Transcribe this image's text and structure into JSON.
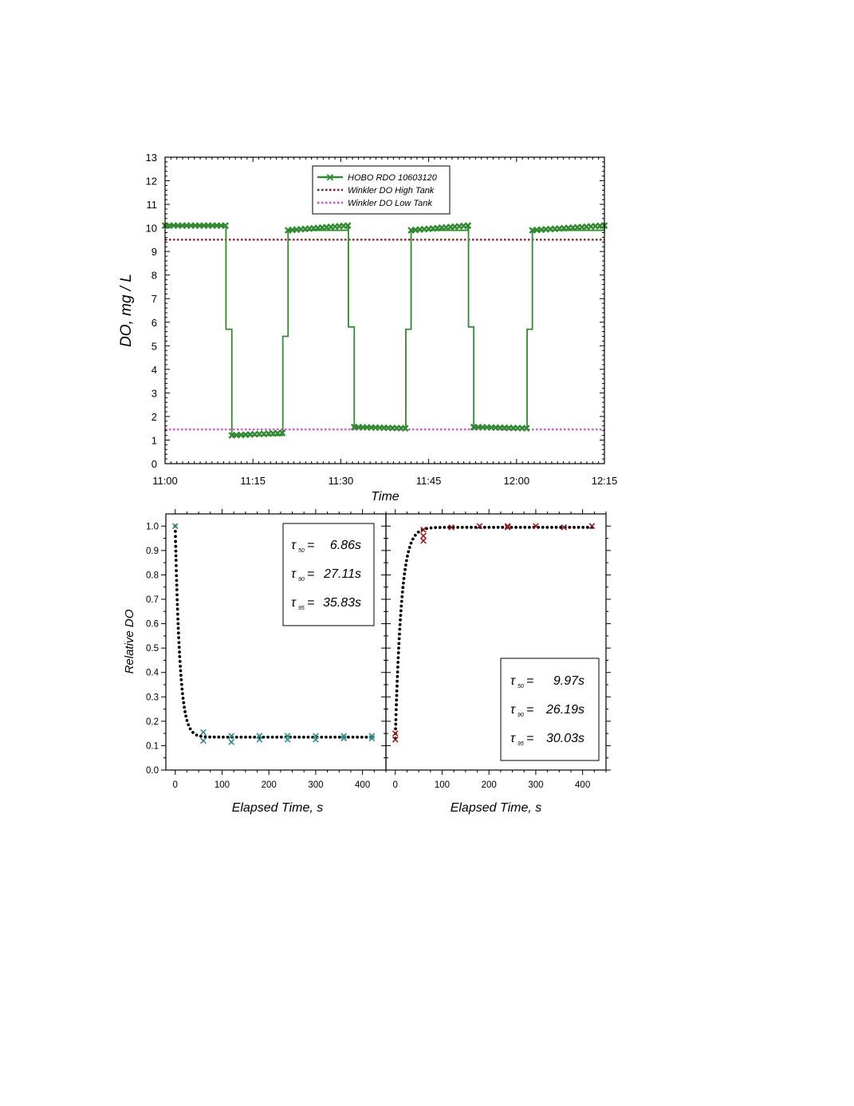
{
  "chart_data": [
    {
      "type": "line",
      "xlabel": "Time",
      "ylabel": "DO, mg / L",
      "xlim": [
        "11:00",
        "12:15"
      ],
      "ylim": [
        0,
        13
      ],
      "x_ticks": [
        "11:00",
        "11:15",
        "11:30",
        "11:45",
        "12:00",
        "12:15"
      ],
      "y_ticks": [
        "0",
        "1",
        "2",
        "3",
        "4",
        "5",
        "6",
        "7",
        "8",
        "9",
        "10",
        "11",
        "12",
        "13"
      ],
      "legend_position": "top-center",
      "series": [
        {
          "name": "HOBO RDO 10603120",
          "color": "#2e8b2e",
          "marker": "x",
          "x_minutes": [
            0,
            10.3,
            10.4,
            11.3,
            11.4,
            20.0,
            20.1,
            20.9,
            21.0,
            31.2,
            31.3,
            32.2,
            32.3,
            41.0,
            41.1,
            41.9,
            42.0,
            51.7,
            51.8,
            52.6,
            52.7,
            61.7,
            61.8,
            62.6,
            62.7,
            75.0
          ],
          "y": [
            10.1,
            10.1,
            5.7,
            5.7,
            1.2,
            1.3,
            5.4,
            5.4,
            9.9,
            10.1,
            5.8,
            5.8,
            1.55,
            1.5,
            5.7,
            5.7,
            9.9,
            10.1,
            5.8,
            5.8,
            1.55,
            1.5,
            5.7,
            5.7,
            9.9,
            10.1
          ]
        },
        {
          "name": "Winkler DO High Tank",
          "color": "#8b1a1a",
          "style": "dotted",
          "value": 9.5
        },
        {
          "name": "Winkler DO Low Tank",
          "color": "#e040e0",
          "style": "dotted",
          "value": 1.45
        }
      ]
    },
    {
      "type": "scatter",
      "xlabel": "Elapsed Time, s",
      "ylabel": "Relative DO",
      "xlim": [
        -20,
        450
      ],
      "ylim": [
        0,
        1.05
      ],
      "x_ticks": [
        "0",
        "100",
        "200",
        "300",
        "400"
      ],
      "y_ticks": [
        "0.0",
        "0.1",
        "0.2",
        "0.3",
        "0.4",
        "0.5",
        "0.6",
        "0.7",
        "0.8",
        "0.9",
        "1.0"
      ],
      "marker_color": "#2a8b8b",
      "fit": {
        "type": "decay",
        "start": 1.0,
        "plateau": 0.135,
        "k": 0.101
      },
      "points": {
        "x": [
          0,
          60,
          60,
          120,
          120,
          180,
          180,
          240,
          240,
          300,
          300,
          360,
          360,
          420,
          420
        ],
        "y": [
          1.0,
          0.155,
          0.12,
          0.14,
          0.115,
          0.14,
          0.125,
          0.14,
          0.125,
          0.14,
          0.125,
          0.14,
          0.13,
          0.14,
          0.13
        ]
      },
      "annotation": {
        "t50": "6.86s",
        "t90": "27.11s",
        "t95": "35.83s"
      }
    },
    {
      "type": "scatter",
      "xlabel": "Elapsed Time, s",
      "xlim": [
        -20,
        450
      ],
      "ylim": [
        0,
        1.05
      ],
      "x_ticks": [
        "0",
        "100",
        "200",
        "300",
        "400"
      ],
      "marker_color": "#a01818",
      "fit": {
        "type": "rise",
        "start": 0.13,
        "plateau": 0.995,
        "k": 0.077
      },
      "points": {
        "x": [
          0,
          0,
          60,
          60,
          60,
          120,
          180,
          240,
          240,
          300,
          360,
          420
        ],
        "y": [
          0.15,
          0.125,
          0.985,
          0.96,
          0.94,
          0.995,
          1.0,
          1.0,
          0.995,
          1.0,
          0.995,
          1.0
        ]
      },
      "annotation": {
        "t50": "9.97s",
        "t90": "26.19s",
        "t95": "30.03s"
      }
    }
  ]
}
